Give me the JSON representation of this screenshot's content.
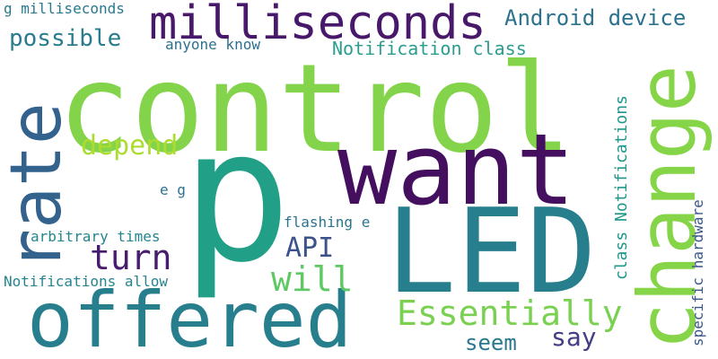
{
  "words": {
    "p": {
      "text": "p",
      "color": "#21a087"
    },
    "control": {
      "text": "control",
      "color": "#84d44b"
    },
    "want": {
      "text": "want",
      "color": "#440f5e"
    },
    "led": {
      "text": "LED",
      "color": "#277f8e"
    },
    "change": {
      "text": "change",
      "color": "#86d549"
    },
    "rate": {
      "text": "rate",
      "color": "#33638d"
    },
    "offered": {
      "text": "offered",
      "color": "#277f8e"
    },
    "milliseconds": {
      "text": "milliseconds",
      "color": "#48186a"
    },
    "essentially": {
      "text": "Essentially",
      "color": "#7ad151"
    },
    "possible": {
      "text": "possible",
      "color": "#287c8e"
    },
    "android_device": {
      "text": "Android device",
      "color": "#2c728e"
    },
    "turn": {
      "text": "turn",
      "color": "#481c6e"
    },
    "will": {
      "text": "will",
      "color": "#5ec962"
    },
    "depend": {
      "text": "depend",
      "color": "#addc30"
    },
    "api": {
      "text": "API",
      "color": "#3b528b"
    },
    "seem": {
      "text": "seem",
      "color": "#2a788e"
    },
    "say": {
      "text": "say",
      "color": "#433e85"
    },
    "notification_class": {
      "text": "Notification class",
      "color": "#2a9d8f"
    },
    "class_notifications": {
      "text": "class Notifications",
      "color": "#1f978b"
    },
    "specific_hardware": {
      "text": "specific hardware",
      "color": "#39568c"
    },
    "g_milliseconds": {
      "text": "g milliseconds",
      "color": "#2a788e"
    },
    "anyone_know": {
      "text": "anyone know",
      "color": "#2d708e"
    },
    "e_g": {
      "text": "e g",
      "color": "#2c728e"
    },
    "flashing_e": {
      "text": "flashing e",
      "color": "#2c738e"
    },
    "arbitrary_times": {
      "text": "arbitrary times",
      "color": "#25858e"
    },
    "notifications_allow": {
      "text": "Notifications allow",
      "color": "#25848e"
    }
  }
}
